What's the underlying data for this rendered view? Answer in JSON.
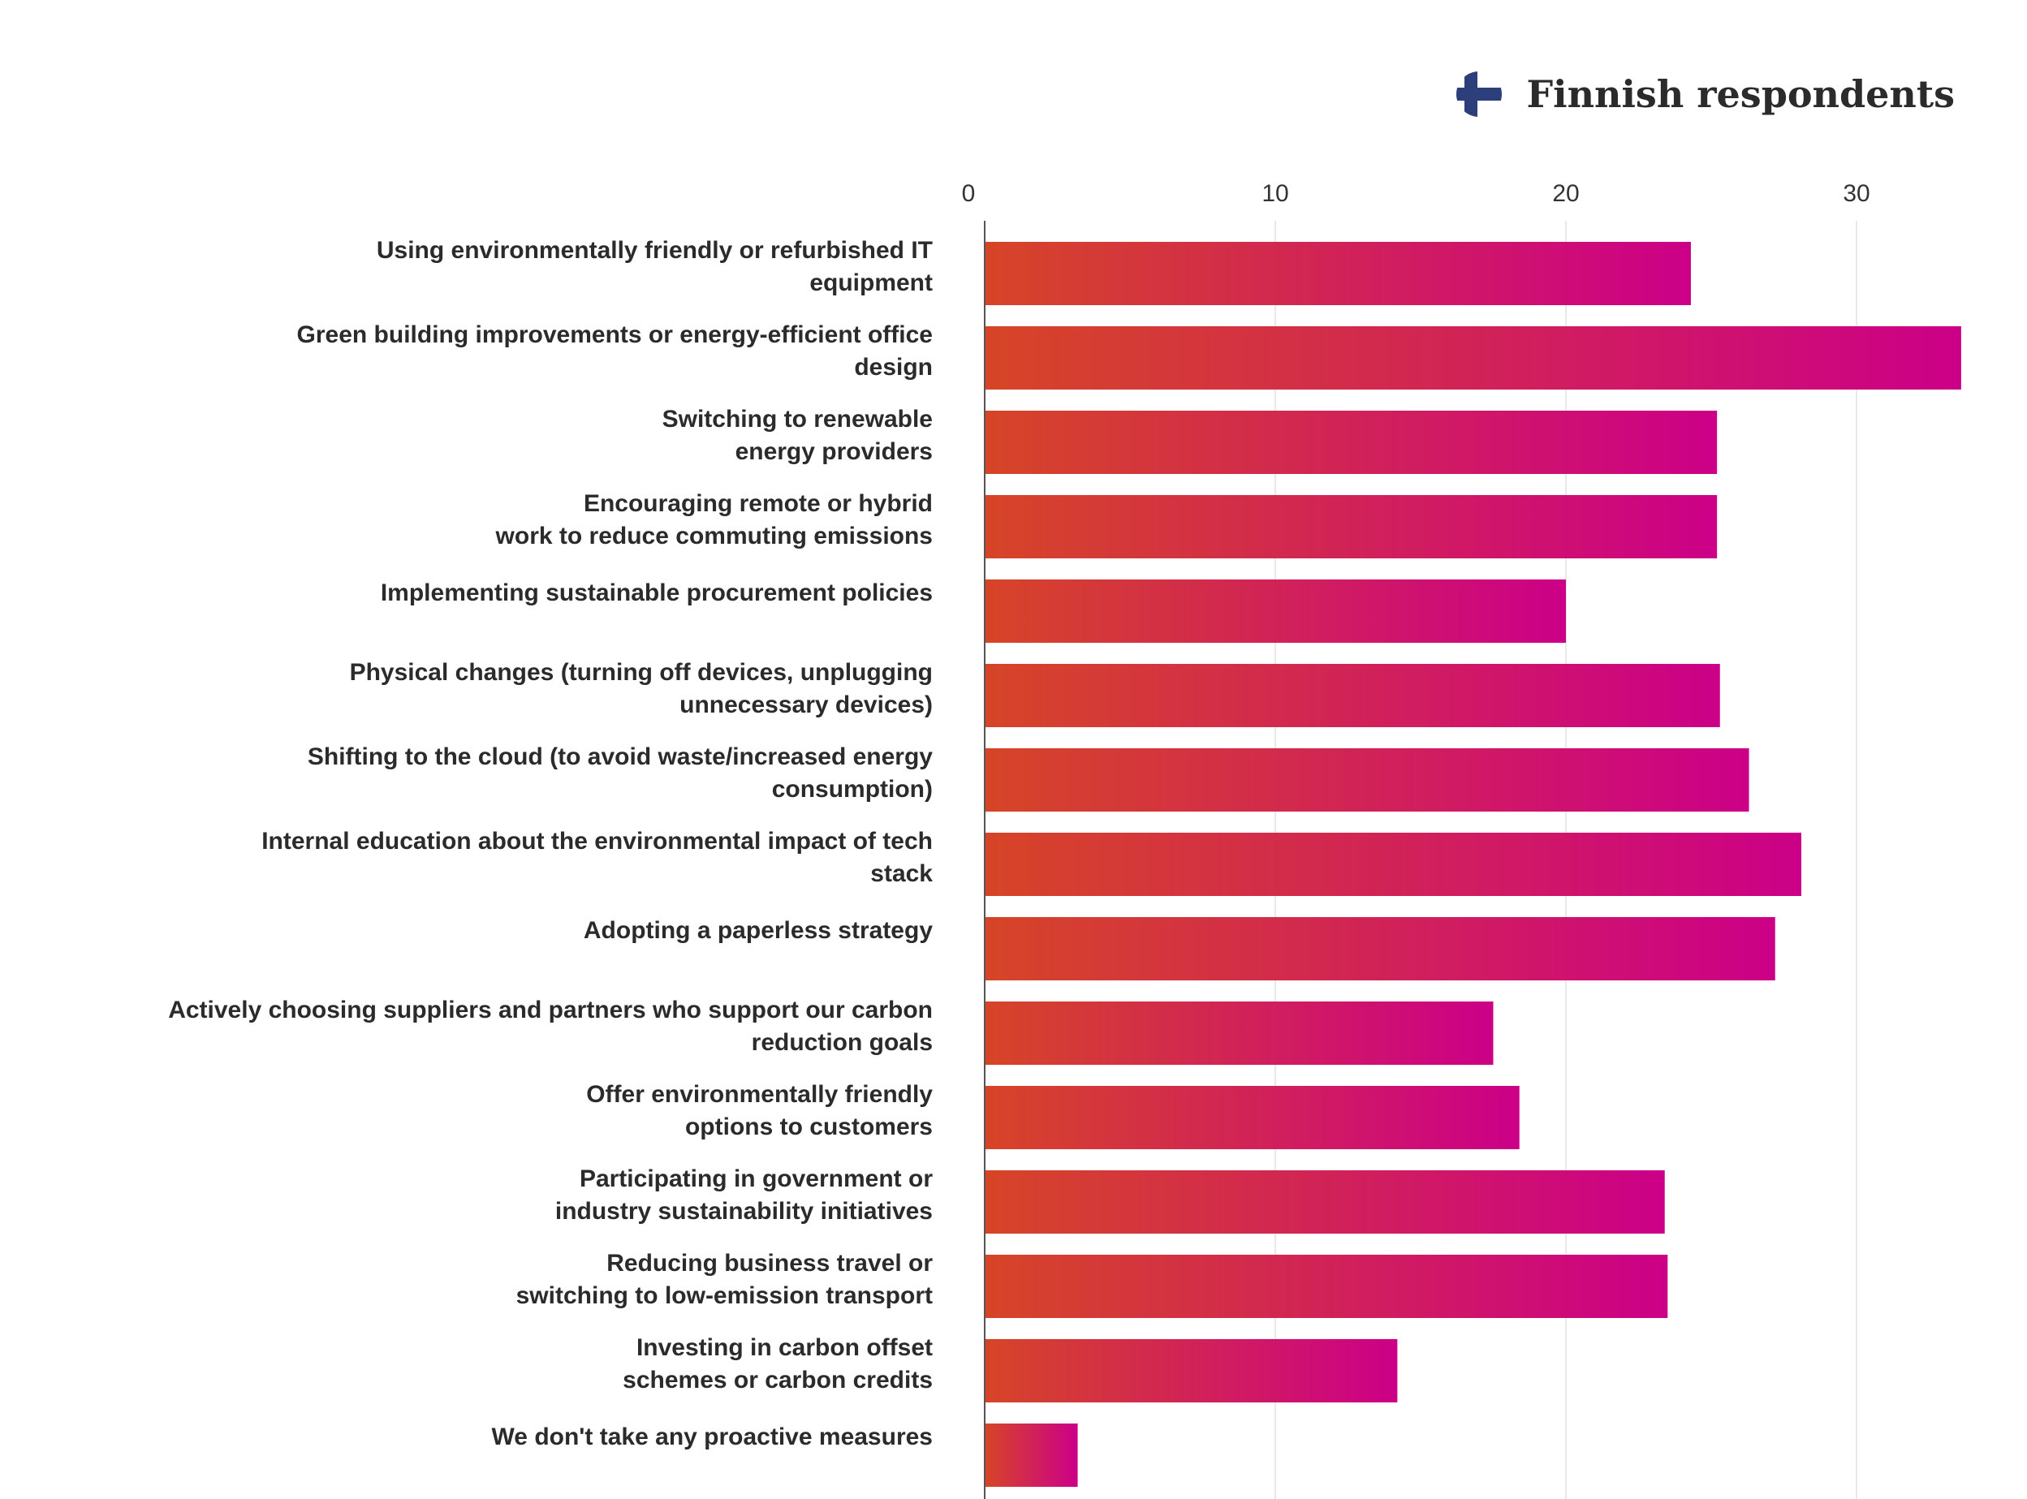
{
  "title": "Finnish respondents",
  "flag_icon": "finland-flag-icon",
  "colors": {
    "gradient_start": "#d64527",
    "gradient_end": "#cc0088",
    "axis": "#555555",
    "grid": "#e8e8e8"
  },
  "chart_data": {
    "type": "bar",
    "orientation": "horizontal",
    "title": "Finnish respondents",
    "xlabel": "",
    "ylabel": "",
    "xlim": [
      0,
      34
    ],
    "xticks": [
      0,
      10,
      20,
      30
    ],
    "grid": true,
    "categories": [
      [
        "Using environmentally friendly or refurbished IT",
        "equipment"
      ],
      [
        "Green building improvements or energy-efficient office",
        "design"
      ],
      [
        "Switching to renewable",
        "energy providers"
      ],
      [
        "Encouraging remote or hybrid",
        "work to reduce commuting emissions"
      ],
      [
        "Implementing sustainable procurement policies"
      ],
      [
        "Physical changes (turning off devices, unplugging",
        "unnecessary devices)"
      ],
      [
        "Shifting to the cloud (to avoid waste/increased energy",
        "consumption)"
      ],
      [
        "Internal education about the environmental impact of tech",
        "stack"
      ],
      [
        "Adopting a paperless strategy"
      ],
      [
        "Actively choosing suppliers and partners who support our carbon",
        "reduction goals"
      ],
      [
        "Offer environmentally friendly",
        "options to customers"
      ],
      [
        "Participating in government or",
        "industry sustainability initiatives"
      ],
      [
        "Reducing business travel or",
        "switching to low-emission transport"
      ],
      [
        "Investing in carbon offset",
        "schemes or carbon credits"
      ],
      [
        "We don't take any proactive measures"
      ]
    ],
    "values": [
      24.3,
      33.6,
      25.2,
      25.2,
      20.0,
      25.3,
      26.3,
      28.1,
      27.2,
      17.5,
      18.4,
      23.4,
      23.5,
      14.2,
      3.2
    ]
  }
}
